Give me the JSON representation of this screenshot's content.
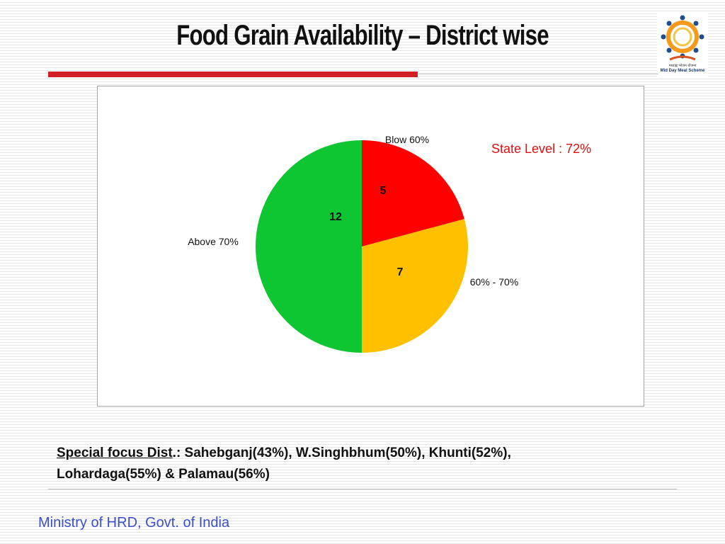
{
  "slide": {
    "title": "Food Grain Availability – District wise",
    "state_level": "State Level : 72%",
    "special_focus": {
      "label": "Special focus Dist",
      "text": ".: Sahebganj(43%), W.Singhbhum(50%), Khunti(52%),",
      "text2": "Lohardaga(55%) & Palamau(56%)"
    },
    "footer": "Ministry of HRD, Govt. of India",
    "logo": {
      "line1": "मध्याह्न भोजन योजना",
      "line2": "Mid Day Meal Scheme"
    }
  },
  "chart_data": {
    "type": "pie",
    "title": "",
    "categories": [
      "Blow 60%",
      "60% - 70%",
      "Above 70%"
    ],
    "values": [
      5,
      7,
      12
    ],
    "colors": [
      "#ff0000",
      "#ffc000",
      "#0ec532"
    ],
    "start_angle_deg": 0,
    "direction": "clockwise",
    "legend": "none",
    "data_labels": "inside"
  },
  "colors": {
    "accent_red": "#d21f26",
    "footer_blue": "#3a4fc9",
    "state_level_red": "#e01010"
  }
}
